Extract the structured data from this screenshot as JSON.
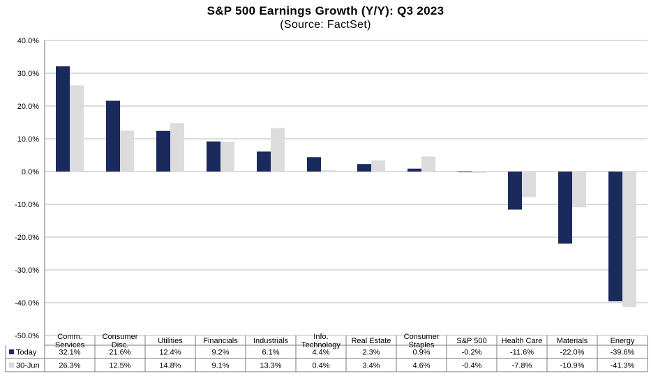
{
  "chart_data": {
    "type": "bar",
    "title": "S&P 500 Earnings Growth (Y/Y): Q3 2023",
    "subtitle": "(Source: FactSet)",
    "categories": [
      [
        "Comm.",
        "Services"
      ],
      [
        "Consumer",
        "Disc."
      ],
      [
        "Utilities"
      ],
      [
        "Financials"
      ],
      [
        "Industrials"
      ],
      [
        "Info.",
        "Technology"
      ],
      [
        "Real Estate"
      ],
      [
        "Consumer",
        "Staples"
      ],
      [
        "S&P 500"
      ],
      [
        "Health Care"
      ],
      [
        "Materials"
      ],
      [
        "Energy"
      ]
    ],
    "series": [
      {
        "name": "Today",
        "color": "#1b2a5c",
        "values": [
          32.1,
          21.6,
          12.4,
          9.2,
          6.1,
          4.4,
          2.3,
          0.9,
          -0.2,
          -11.6,
          -22.0,
          -39.6
        ],
        "labels": [
          "32.1%",
          "21.6%",
          "12.4%",
          "9.2%",
          "6.1%",
          "4.4%",
          "2.3%",
          "0.9%",
          "-0.2%",
          "-11.6%",
          "-22.0%",
          "-39.6%"
        ]
      },
      {
        "name": "30-Jun",
        "color": "#dcdcdc",
        "values": [
          26.3,
          12.5,
          14.8,
          9.1,
          13.3,
          0.4,
          3.4,
          4.6,
          -0.4,
          -7.8,
          -10.9,
          -41.3
        ],
        "labels": [
          "26.3%",
          "12.5%",
          "14.8%",
          "9.1%",
          "13.3%",
          "0.4%",
          "3.4%",
          "4.6%",
          "-0.4%",
          "-7.8%",
          "-10.9%",
          "-41.3%"
        ]
      }
    ],
    "ylim": [
      -50,
      40
    ],
    "yticks": [
      40,
      30,
      20,
      10,
      0,
      -10,
      -20,
      -30,
      -40,
      -50
    ],
    "ytick_labels": [
      "40.0%",
      "30.0%",
      "20.0%",
      "10.0%",
      "0.0%",
      "-10.0%",
      "-20.0%",
      "-30.0%",
      "-40.0%",
      "-50.0%"
    ],
    "grid": true,
    "legend": "data-table-below",
    "xlabel": "",
    "ylabel": ""
  }
}
